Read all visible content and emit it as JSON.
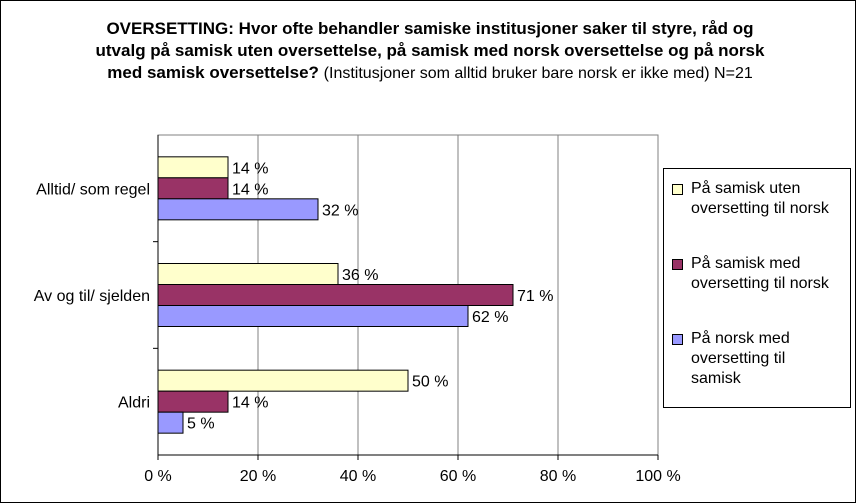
{
  "title_bold": "OVERSETTING: Hvor ofte behandler samiske institusjoner saker til styre, råd og utvalg på samisk uten oversettelse, på samisk med norsk oversettelse og på norsk med samisk oversettelse?",
  "title_note": "(Institusjoner som alltid bruker bare norsk er ikke med) N=21",
  "chart_data": {
    "type": "bar",
    "orientation": "horizontal",
    "categories": [
      "Alltid/ som regel",
      "Av og til/ sjelden",
      "Aldri"
    ],
    "series": [
      {
        "name": "På samisk uten oversetting til norsk",
        "values": [
          14,
          36,
          50
        ],
        "labels": [
          "14 %",
          "36 %",
          "50 %"
        ],
        "color": "#ffffcc",
        "legend_lines": [
          "På samisk uten",
          "oversetting til norsk"
        ]
      },
      {
        "name": "På samisk med oversetting til norsk",
        "values": [
          14,
          71,
          14
        ],
        "labels": [
          "14 %",
          "71 %",
          "14 %"
        ],
        "color": "#993366",
        "legend_lines": [
          "På samisk med",
          "oversetting til norsk"
        ]
      },
      {
        "name": "På norsk med oversetting til samisk",
        "values": [
          32,
          62,
          5
        ],
        "labels": [
          "32 %",
          "62 %",
          "5 %"
        ],
        "color": "#9999ff",
        "legend_lines": [
          "På norsk med",
          "oversetting til",
          "samisk"
        ]
      }
    ],
    "xlim": [
      0,
      100
    ],
    "x_ticks": [
      0,
      20,
      40,
      60,
      80,
      100
    ],
    "x_tick_labels": [
      "0 %",
      "20 %",
      "40 %",
      "60 %",
      "80 %",
      "100 %"
    ],
    "grid": true,
    "legend_position": "right"
  }
}
